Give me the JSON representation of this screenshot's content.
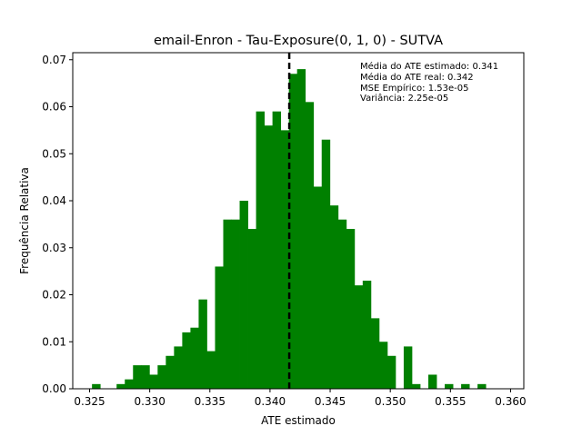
{
  "chart_data": {
    "type": "bar",
    "subtype": "histogram",
    "title": "email-Enron - Tau-Exposure(0, 1, 0) - SUTVA",
    "xlabel": "ATE estimado",
    "ylabel": "Frequência Relativa",
    "xlim": [
      0.3236,
      0.3611
    ],
    "ylim": [
      0,
      0.0715
    ],
    "x_ticks": [
      0.325,
      0.33,
      0.335,
      0.34,
      0.345,
      0.35,
      0.355,
      0.36
    ],
    "x_tick_labels": [
      "0.325",
      "0.330",
      "0.335",
      "0.340",
      "0.345",
      "0.350",
      "0.355",
      "0.360"
    ],
    "y_ticks": [
      0,
      0.01,
      0.02,
      0.03,
      0.04,
      0.05,
      0.06,
      0.07
    ],
    "y_tick_labels": [
      "0.00",
      "0.01",
      "0.02",
      "0.03",
      "0.04",
      "0.05",
      "0.06",
      "0.07"
    ],
    "bar_color": "#008000",
    "bin_start": 0.3252,
    "bin_width": 0.000682,
    "values": [
      0.001,
      0,
      0,
      0.001,
      0.002,
      0.005,
      0.005,
      0.003,
      0.005,
      0.007,
      0.009,
      0.012,
      0.013,
      0.019,
      0.008,
      0.026,
      0.036,
      0.036,
      0.04,
      0.034,
      0.059,
      0.056,
      0.059,
      0.055,
      0.067,
      0.068,
      0.061,
      0.043,
      0.053,
      0.039,
      0.036,
      0.034,
      0.022,
      0.023,
      0.015,
      0.01,
      0.007,
      0,
      0.009,
      0.001,
      0,
      0.003,
      0,
      0.001,
      0,
      0.001,
      0,
      0.001
    ],
    "vertical_line": {
      "x": 0.3416,
      "color": "#000000",
      "style": "dashed"
    },
    "annotations": [
      "Média do ATE estimado: 0.341",
      "Média do ATE real: 0.342",
      "MSE Empírico: 1.53e-05",
      "Variância: 2.25e-05"
    ],
    "grid": false,
    "legend": "none"
  }
}
